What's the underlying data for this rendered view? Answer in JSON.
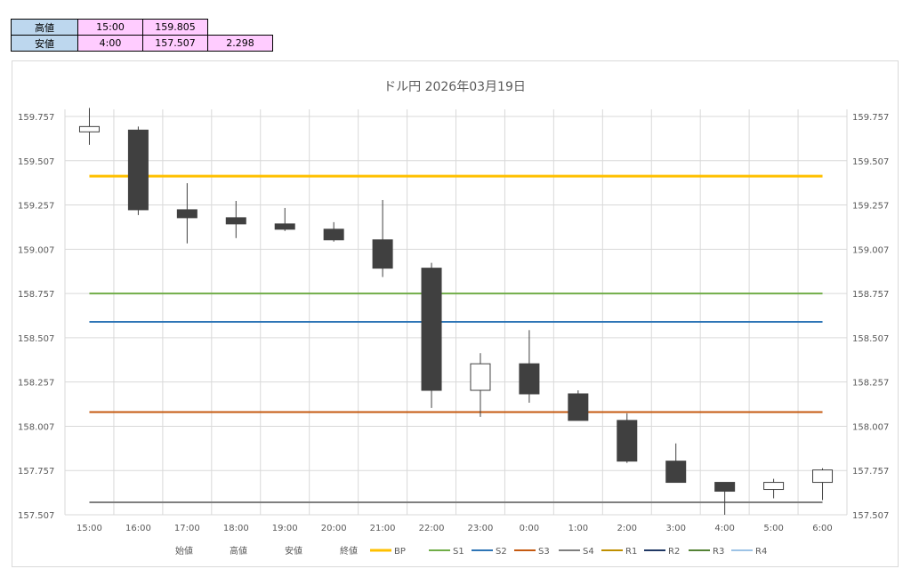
{
  "summary": {
    "high": {
      "label": "高値",
      "time": "15:00",
      "value": "159.805",
      "extra": ""
    },
    "low": {
      "label": "安値",
      "time": "4:00",
      "value": "157.507",
      "extra": "2.298"
    }
  },
  "colors": {
    "BP": "#ffc000",
    "S1": "#70ad47",
    "S2": "#2e75b6",
    "S3": "#c55a11",
    "S4": "#7f7f7f",
    "R1": "#bf8f00",
    "R2": "#203864",
    "R3": "#548235",
    "R4": "#9dc3e6",
    "candle": "#404040",
    "grid": "#d9d9d9",
    "axis_text": "#595959"
  },
  "chart_data": {
    "type": "candlestick",
    "title": "ドル円 2026年03月19日",
    "categories": [
      "15:00",
      "16:00",
      "17:00",
      "18:00",
      "19:00",
      "20:00",
      "21:00",
      "22:00",
      "23:00",
      "0:00",
      "1:00",
      "2:00",
      "3:00",
      "4:00",
      "5:00",
      "6:00"
    ],
    "ohlc": [
      {
        "open": 159.67,
        "high": 159.805,
        "low": 159.597,
        "close": 159.7
      },
      {
        "open": 159.68,
        "high": 159.7,
        "low": 159.2,
        "close": 159.23
      },
      {
        "open": 159.23,
        "high": 159.38,
        "low": 159.04,
        "close": 159.185
      },
      {
        "open": 159.185,
        "high": 159.28,
        "low": 159.07,
        "close": 159.15
      },
      {
        "open": 159.15,
        "high": 159.24,
        "low": 159.11,
        "close": 159.12
      },
      {
        "open": 159.12,
        "high": 159.16,
        "low": 159.05,
        "close": 159.06
      },
      {
        "open": 159.06,
        "high": 159.285,
        "low": 158.85,
        "close": 158.9
      },
      {
        "open": 158.9,
        "high": 158.93,
        "low": 158.11,
        "close": 158.21
      },
      {
        "open": 158.21,
        "high": 158.42,
        "low": 158.06,
        "close": 158.36
      },
      {
        "open": 158.36,
        "high": 158.55,
        "low": 158.14,
        "close": 158.19
      },
      {
        "open": 158.19,
        "high": 158.21,
        "low": 158.04,
        "close": 158.04
      },
      {
        "open": 158.04,
        "high": 158.08,
        "low": 157.8,
        "close": 157.81
      },
      {
        "open": 157.81,
        "high": 157.91,
        "low": 157.69,
        "close": 157.69
      },
      {
        "open": 157.69,
        "high": 157.69,
        "low": 157.507,
        "close": 157.64
      },
      {
        "open": 157.65,
        "high": 157.71,
        "low": 157.6,
        "close": 157.69
      },
      {
        "open": 157.69,
        "high": 157.77,
        "low": 157.59,
        "close": 157.76
      }
    ],
    "levels": {
      "BP": 159.42,
      "S1": 158.757,
      "S2": 158.597,
      "S3": 158.087,
      "S4": 157.577
    },
    "y_ticks": [
      "159.757",
      "159.507",
      "159.257",
      "159.007",
      "158.757",
      "158.507",
      "158.257",
      "158.007",
      "157.757",
      "157.507"
    ],
    "ylim": [
      157.507,
      159.757
    ],
    "grid": true,
    "legend": [
      "始値",
      "高値",
      "安値",
      "終値",
      "BP",
      "S1",
      "S2",
      "S3",
      "S4",
      "R1",
      "R2",
      "R3",
      "R4"
    ],
    "legend_position": "bottom"
  }
}
